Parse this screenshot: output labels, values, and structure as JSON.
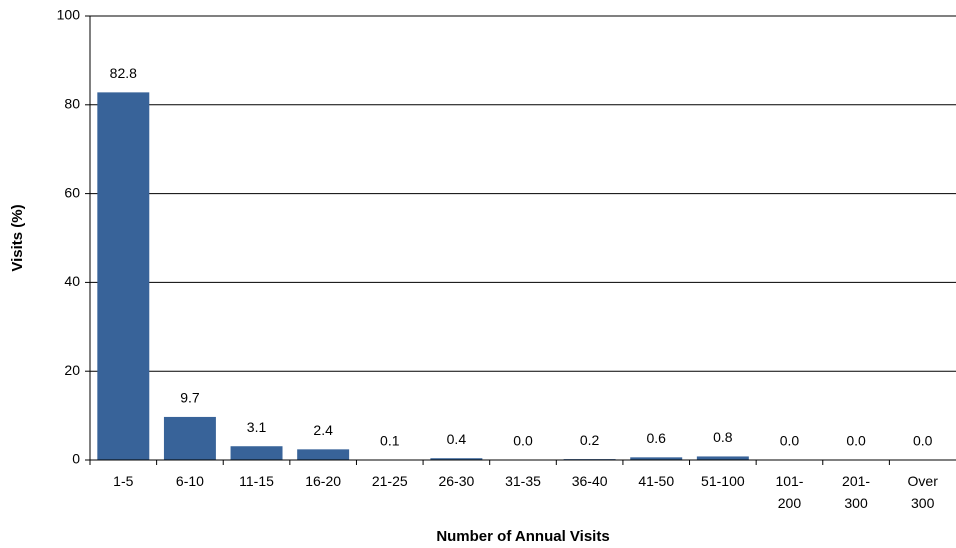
{
  "chart_data": {
    "type": "bar",
    "x_label": "Number of Annual Visits",
    "y_label": "Visits (%)",
    "categories": [
      "1-5",
      "6-10",
      "11-15",
      "16-20",
      "21-25",
      "26-30",
      "31-35",
      "36-40",
      "41-50",
      "51-100",
      "101- 200",
      "201- 300",
      "Over 300"
    ],
    "values": [
      82.8,
      9.7,
      3.1,
      2.4,
      0.1,
      0.4,
      0.0,
      0.2,
      0.6,
      0.8,
      0.0,
      0.0,
      0.0
    ],
    "value_labels": [
      "82.8",
      "9.7",
      "3.1",
      "2.4",
      "0.1",
      "0.4",
      "0.0",
      "0.2",
      "0.6",
      "0.8",
      "0.0",
      "0.0",
      "0.0"
    ],
    "color": "#386399",
    "ylim": [
      0,
      100
    ],
    "yticks": [
      0,
      20,
      40,
      60,
      80,
      100
    ],
    "grid": true
  }
}
